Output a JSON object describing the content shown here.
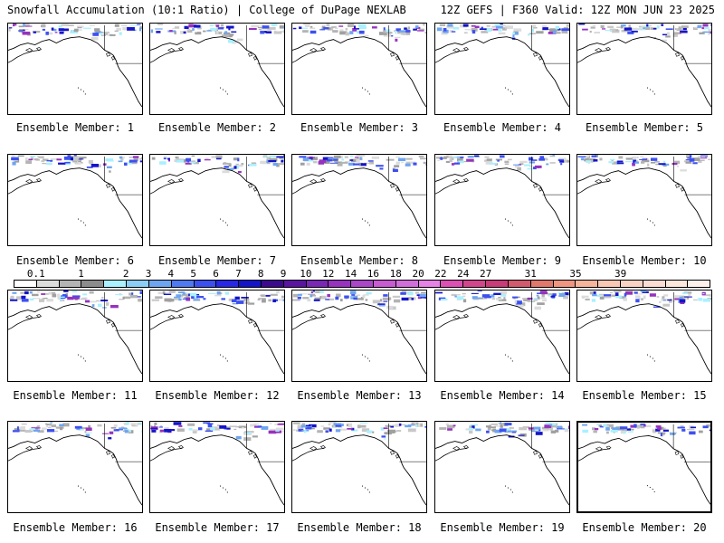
{
  "header": {
    "left": "Snowfall Accumulation (10:1 Ratio) | College of DuPage NEXLAB",
    "right": "12Z GEFS | F360 Valid: 12Z MON JUN 23 2025"
  },
  "colorbar": {
    "labels": [
      "0.1",
      "1",
      "2",
      "3",
      "4",
      "5",
      "6",
      "7",
      "8",
      "9",
      "10",
      "12",
      "14",
      "16",
      "18",
      "20",
      "22",
      "24",
      "27",
      "31",
      "35",
      "39"
    ],
    "colors": [
      "#ffffff",
      "#dcdcdc",
      "#b4b4b4",
      "#8c8c8c",
      "#aaf0ff",
      "#8ccdf5",
      "#6ea5f0",
      "#5078f0",
      "#3c50f0",
      "#2828e6",
      "#1414c8",
      "#3c0a8c",
      "#5a14a0",
      "#7828b4",
      "#9632be",
      "#aa46c8",
      "#c85ad2",
      "#d26eda",
      "#e682e6",
      "#dc50b4",
      "#d2468c",
      "#c83c78",
      "#d25a6e",
      "#e0786e",
      "#ee9680",
      "#f5b49b",
      "#f8c8b4",
      "#fad2c3",
      "#fcdcd2",
      "#fde6dc",
      "#fef0eb"
    ]
  },
  "members": [
    {
      "label": "Ensemble Member: 1"
    },
    {
      "label": "Ensemble Member: 2"
    },
    {
      "label": "Ensemble Member: 3"
    },
    {
      "label": "Ensemble Member: 4"
    },
    {
      "label": "Ensemble Member: 5"
    },
    {
      "label": "Ensemble Member: 6"
    },
    {
      "label": "Ensemble Member: 7"
    },
    {
      "label": "Ensemble Member: 8"
    },
    {
      "label": "Ensemble Member: 9"
    },
    {
      "label": "Ensemble Member: 10"
    },
    {
      "label": "Ensemble Member: 11"
    },
    {
      "label": "Ensemble Member: 12"
    },
    {
      "label": "Ensemble Member: 13"
    },
    {
      "label": "Ensemble Member: 14"
    },
    {
      "label": "Ensemble Member: 15"
    },
    {
      "label": "Ensemble Member: 16"
    },
    {
      "label": "Ensemble Member: 17"
    },
    {
      "label": "Ensemble Member: 18"
    },
    {
      "label": "Ensemble Member: 19"
    },
    {
      "label": "Ensemble Member: 20"
    }
  ]
}
